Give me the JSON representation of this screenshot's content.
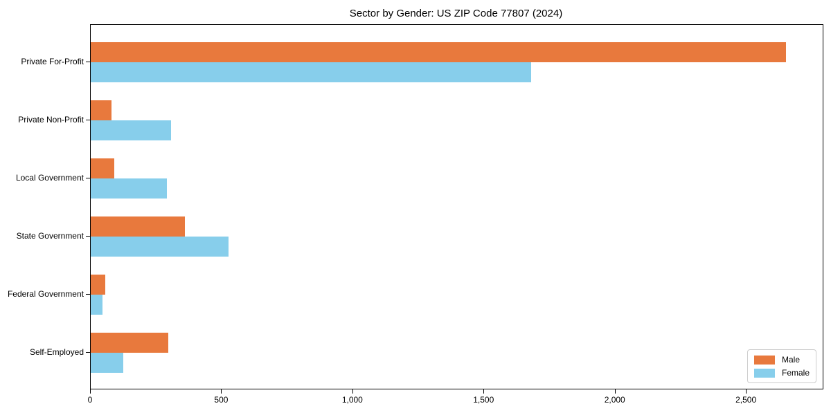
{
  "chart_data": {
    "type": "bar",
    "orientation": "horizontal",
    "title": "Sector by Gender: US ZIP Code 77807 (2024)",
    "xlabel": "",
    "ylabel": "",
    "categories": [
      "Private For-Profit",
      "Private Non-Profit",
      "Local Government",
      "State Government",
      "Federal Government",
      "Self-Employed"
    ],
    "series": [
      {
        "name": "Male",
        "color": "#e8793d",
        "values": [
          2650,
          80,
          90,
          360,
          55,
          295
        ]
      },
      {
        "name": "Female",
        "color": "#87ceeb",
        "values": [
          1680,
          305,
          290,
          525,
          45,
          125
        ]
      }
    ],
    "xlim": [
      0,
      2790
    ],
    "xticks": [
      0,
      500,
      1000,
      1500,
      2000,
      2500
    ],
    "xtick_labels": [
      "0",
      "500",
      "1,000",
      "1,500",
      "2,000",
      "2,500"
    ],
    "grid": false,
    "legend_position": "lower right",
    "background_color": "#ffffff",
    "spine_color": "#000000",
    "legend_border_color": "#cccccc"
  }
}
